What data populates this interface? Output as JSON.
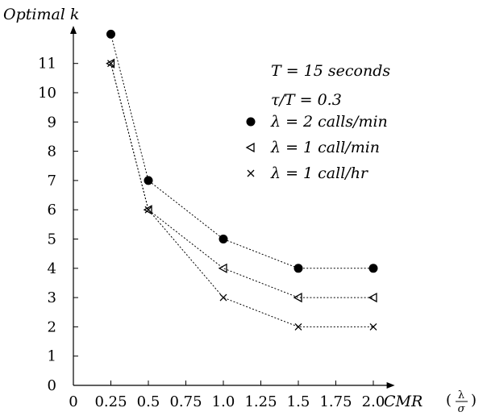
{
  "chart_data": {
    "type": "line",
    "title": "",
    "ylabel": "Optimal k",
    "xlabel": "CMR",
    "xlabel_fraction": {
      "numerator": "λ",
      "denominator": "σ"
    },
    "x": [
      0.25,
      0.5,
      1.0,
      1.5,
      2.0
    ],
    "x_ticks": [
      "0",
      "0.25",
      "0.5",
      "0.75",
      "1.0",
      "1.25",
      "1.5",
      "1.75",
      "2.0"
    ],
    "y_ticks": [
      "0",
      "1",
      "2",
      "3",
      "4",
      "5",
      "6",
      "7",
      "8",
      "9",
      "10",
      "11"
    ],
    "xlim": [
      0,
      2.1
    ],
    "ylim": [
      0,
      12
    ],
    "grid": false,
    "line_style": "dotted",
    "legend_position": "top-right",
    "annotations": [
      {
        "text": "T = 15 seconds"
      },
      {
        "text": "τ/T = 0.3"
      }
    ],
    "series": [
      {
        "name": "λ = 2 calls/min",
        "marker": "filled-circle",
        "values": [
          12,
          7,
          5,
          4,
          4
        ]
      },
      {
        "name": "λ = 1 call/min",
        "marker": "left-triangle",
        "values": [
          11,
          6,
          4,
          3,
          3
        ]
      },
      {
        "name": "λ = 1 call/hr",
        "marker": "cross",
        "values": [
          11,
          6,
          3,
          2,
          2
        ]
      }
    ],
    "colors": {
      "ink": "#000000"
    }
  }
}
